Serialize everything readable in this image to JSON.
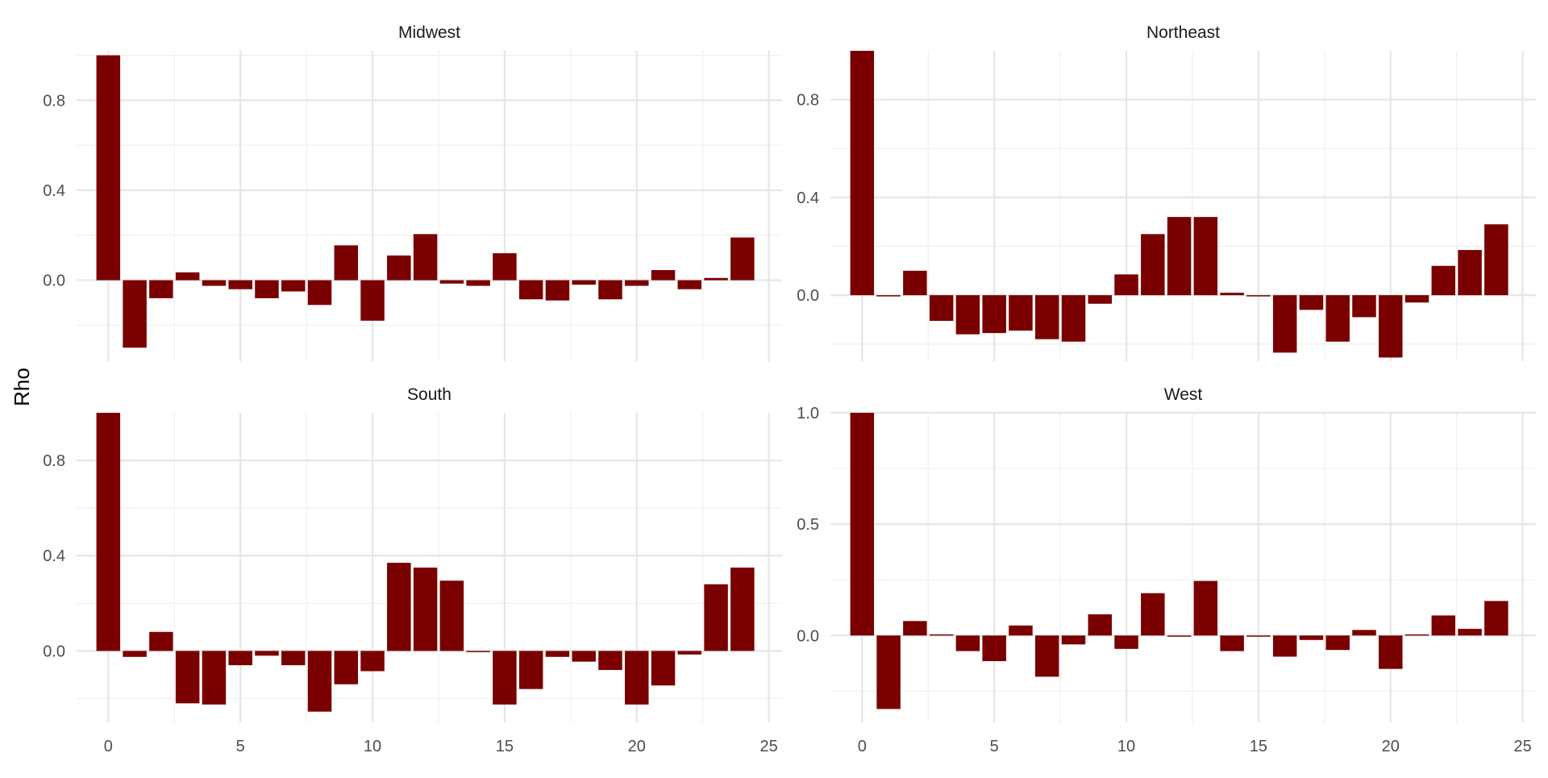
{
  "chart_data": {
    "type": "bar",
    "facet_layout": "2x2",
    "ylabel": "Rho",
    "xlabel": "",
    "bar_color": "#7a0000",
    "grid": true,
    "x_ticks": [
      0,
      5,
      10,
      15,
      20,
      25
    ],
    "x_tick_labels": [
      "0",
      "5",
      "10",
      "15",
      "20",
      "25"
    ],
    "xlim": [
      -1.2,
      25.5
    ],
    "x": [
      0,
      1,
      2,
      3,
      4,
      5,
      6,
      7,
      8,
      9,
      10,
      11,
      12,
      13,
      14,
      15,
      16,
      17,
      18,
      19,
      20,
      21,
      22,
      23,
      24
    ],
    "panels": [
      {
        "title": "Midwest",
        "ylim": [
          -0.36,
          1.02
        ],
        "y_ticks": [
          0.0,
          0.4,
          0.8
        ],
        "y_tick_labels": [
          "0.0",
          "0.4",
          "0.8"
        ],
        "values": [
          1.0,
          -0.3,
          -0.08,
          0.035,
          -0.025,
          -0.04,
          -0.08,
          -0.05,
          -0.11,
          0.155,
          -0.18,
          0.11,
          0.205,
          -0.015,
          -0.025,
          0.12,
          -0.085,
          -0.09,
          -0.02,
          -0.085,
          -0.025,
          0.045,
          -0.04,
          0.01,
          0.19
        ]
      },
      {
        "title": "Northeast",
        "ylim": [
          -0.27,
          1.0
        ],
        "y_ticks": [
          0.0,
          0.4,
          0.8
        ],
        "y_tick_labels": [
          "0.0",
          "0.4",
          "0.8"
        ],
        "values": [
          1.0,
          -0.005,
          0.1,
          -0.105,
          -0.16,
          -0.155,
          -0.145,
          -0.18,
          -0.19,
          -0.035,
          0.085,
          0.25,
          0.32,
          0.32,
          0.01,
          -0.005,
          -0.235,
          -0.06,
          -0.19,
          -0.09,
          -0.255,
          -0.03,
          0.12,
          0.185,
          0.29
        ]
      },
      {
        "title": "South",
        "ylim": [
          -0.3,
          1.0
        ],
        "y_ticks": [
          0.0,
          0.4,
          0.8
        ],
        "y_tick_labels": [
          "0.0",
          "0.4",
          "0.8"
        ],
        "values": [
          1.0,
          -0.025,
          0.08,
          -0.22,
          -0.225,
          -0.06,
          -0.02,
          -0.06,
          -0.255,
          -0.14,
          -0.085,
          0.37,
          0.35,
          0.295,
          0.0,
          -0.225,
          -0.16,
          -0.025,
          -0.045,
          -0.08,
          -0.225,
          -0.145,
          -0.015,
          0.28,
          0.35
        ]
      },
      {
        "title": "West",
        "ylim": [
          -0.39,
          1.0
        ],
        "y_ticks": [
          0.0,
          0.5,
          1.0
        ],
        "y_tick_labels": [
          "0.0",
          "0.5",
          "1.0"
        ],
        "values": [
          1.0,
          -0.33,
          0.065,
          0.005,
          -0.07,
          -0.115,
          0.045,
          -0.185,
          -0.04,
          0.095,
          -0.06,
          0.19,
          0.0,
          0.245,
          -0.07,
          -0.005,
          -0.095,
          -0.02,
          -0.065,
          0.025,
          -0.15,
          0.005,
          0.09,
          0.03,
          0.155
        ]
      }
    ]
  }
}
